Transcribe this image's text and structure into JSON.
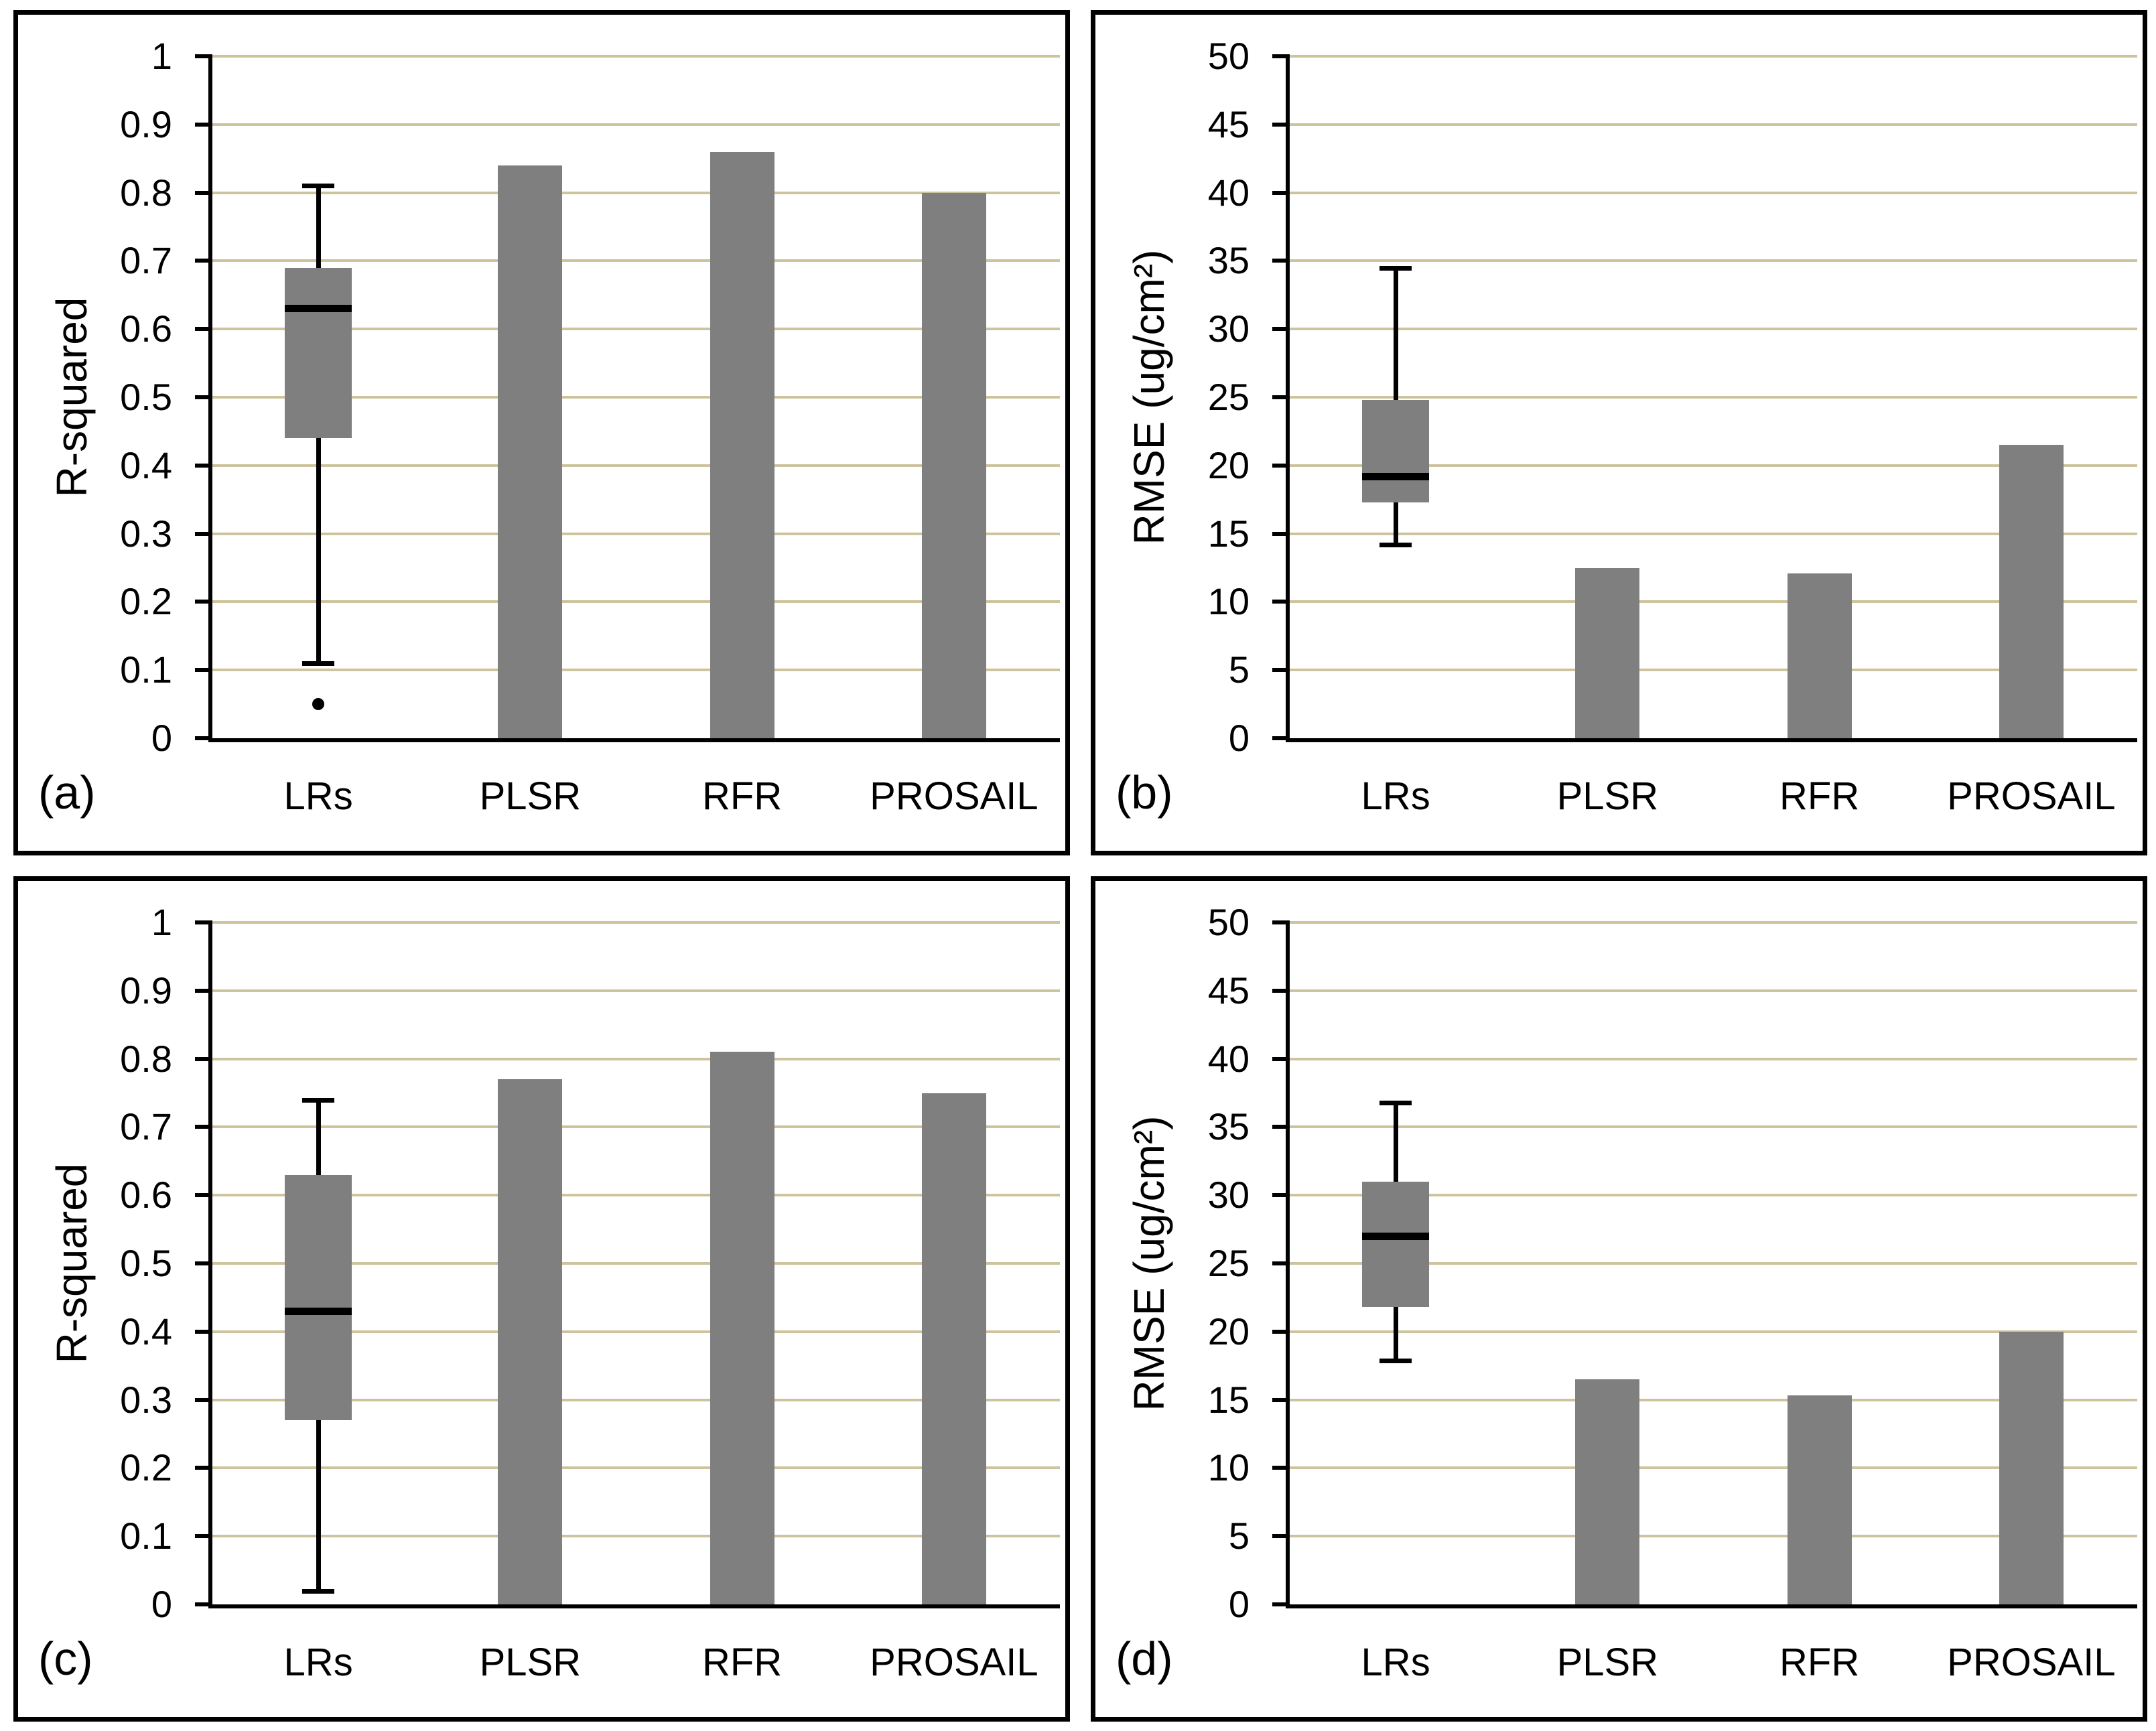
{
  "figure": {
    "background": "#ffffff",
    "panel_border_color": "#000000",
    "rows": 2,
    "cols": 2
  },
  "colors": {
    "bar": "#7f7f7f",
    "box_fill": "#7f7f7f",
    "median": "#000000",
    "whisker": "#000000",
    "outlier": "#000000",
    "gridline": "#cdc49e",
    "axis": "#000000",
    "text": "#000000"
  },
  "chart_data": [
    {
      "id": "a",
      "panel_label": "(a)",
      "type": "bar",
      "ylabel": "R-squared",
      "xlabel": "",
      "ylim": [
        0,
        1
      ],
      "grid": true,
      "legend_position": "none",
      "categories": [
        "LRs",
        "PLSR",
        "RFR",
        "PROSAIL"
      ],
      "yticks": [
        {
          "value": 1,
          "label": "1"
        },
        {
          "value": 0.9,
          "label": "0.9"
        },
        {
          "value": 0.8,
          "label": "0.8"
        },
        {
          "value": 0.7,
          "label": "0.7"
        },
        {
          "value": 0.6,
          "label": "0.6"
        },
        {
          "value": 0.5,
          "label": "0.5"
        },
        {
          "value": 0.4,
          "label": "0.4"
        },
        {
          "value": 0.3,
          "label": "0.3"
        },
        {
          "value": 0.2,
          "label": "0.2"
        },
        {
          "value": 0.1,
          "label": "0.1"
        },
        {
          "value": 0,
          "label": "0"
        }
      ],
      "series": [
        {
          "name": "LRs",
          "display": "boxplot",
          "whisker_low": 0.11,
          "q1": 0.44,
          "median": 0.63,
          "q3": 0.69,
          "whisker_high": 0.81,
          "outliers": [
            0.05
          ]
        },
        {
          "name": "PLSR",
          "display": "bar",
          "value": 0.84
        },
        {
          "name": "RFR",
          "display": "bar",
          "value": 0.86
        },
        {
          "name": "PROSAIL",
          "display": "bar",
          "value": 0.8
        }
      ]
    },
    {
      "id": "b",
      "panel_label": "(b)",
      "type": "bar",
      "ylabel": "RMSE (ug/cm²)",
      "xlabel": "",
      "ylim": [
        0,
        50
      ],
      "grid": true,
      "legend_position": "none",
      "categories": [
        "LRs",
        "PLSR",
        "RFR",
        "PROSAIL"
      ],
      "yticks": [
        {
          "value": 50,
          "label": "50"
        },
        {
          "value": 45,
          "label": "45"
        },
        {
          "value": 40,
          "label": "40"
        },
        {
          "value": 35,
          "label": "35"
        },
        {
          "value": 30,
          "label": "30"
        },
        {
          "value": 25,
          "label": "25"
        },
        {
          "value": 20,
          "label": "20"
        },
        {
          "value": 15,
          "label": "15"
        },
        {
          "value": 10,
          "label": "10"
        },
        {
          "value": 5,
          "label": "5"
        },
        {
          "value": 0,
          "label": "0"
        }
      ],
      "series": [
        {
          "name": "LRs",
          "display": "boxplot",
          "whisker_low": 14.2,
          "q1": 17.3,
          "median": 19.2,
          "q3": 24.8,
          "whisker_high": 34.5,
          "outliers": []
        },
        {
          "name": "PLSR",
          "display": "bar",
          "value": 12.5
        },
        {
          "name": "RFR",
          "display": "bar",
          "value": 12.1
        },
        {
          "name": "PROSAIL",
          "display": "bar",
          "value": 21.5
        }
      ]
    },
    {
      "id": "c",
      "panel_label": "(c)",
      "type": "bar",
      "ylabel": "R-squared",
      "xlabel": "",
      "ylim": [
        0,
        1
      ],
      "grid": true,
      "legend_position": "none",
      "categories": [
        "LRs",
        "PLSR",
        "RFR",
        "PROSAIL"
      ],
      "yticks": [
        {
          "value": 1,
          "label": "1"
        },
        {
          "value": 0.9,
          "label": "0.9"
        },
        {
          "value": 0.8,
          "label": "0.8"
        },
        {
          "value": 0.7,
          "label": "0.7"
        },
        {
          "value": 0.6,
          "label": "0.6"
        },
        {
          "value": 0.5,
          "label": "0.5"
        },
        {
          "value": 0.4,
          "label": "0.4"
        },
        {
          "value": 0.3,
          "label": "0.3"
        },
        {
          "value": 0.2,
          "label": "0.2"
        },
        {
          "value": 0.1,
          "label": "0.1"
        },
        {
          "value": 0,
          "label": "0"
        }
      ],
      "series": [
        {
          "name": "LRs",
          "display": "boxplot",
          "whisker_low": 0.02,
          "q1": 0.27,
          "median": 0.43,
          "q3": 0.63,
          "whisker_high": 0.74,
          "outliers": []
        },
        {
          "name": "PLSR",
          "display": "bar",
          "value": 0.77
        },
        {
          "name": "RFR",
          "display": "bar",
          "value": 0.81
        },
        {
          "name": "PROSAIL",
          "display": "bar",
          "value": 0.75
        }
      ]
    },
    {
      "id": "d",
      "panel_label": "(d)",
      "type": "bar",
      "ylabel": "RMSE (ug/cm²)",
      "xlabel": "",
      "ylim": [
        0,
        50
      ],
      "grid": true,
      "legend_position": "none",
      "categories": [
        "LRs",
        "PLSR",
        "RFR",
        "PROSAIL"
      ],
      "yticks": [
        {
          "value": 50,
          "label": "50"
        },
        {
          "value": 45,
          "label": "45"
        },
        {
          "value": 40,
          "label": "40"
        },
        {
          "value": 35,
          "label": "35"
        },
        {
          "value": 30,
          "label": "30"
        },
        {
          "value": 25,
          "label": "25"
        },
        {
          "value": 20,
          "label": "20"
        },
        {
          "value": 15,
          "label": "15"
        },
        {
          "value": 10,
          "label": "10"
        },
        {
          "value": 5,
          "label": "5"
        },
        {
          "value": 0,
          "label": "0"
        }
      ],
      "series": [
        {
          "name": "LRs",
          "display": "boxplot",
          "whisker_low": 17.9,
          "q1": 21.8,
          "median": 27.0,
          "q3": 31.0,
          "whisker_high": 36.8,
          "outliers": []
        },
        {
          "name": "PLSR",
          "display": "bar",
          "value": 16.5
        },
        {
          "name": "RFR",
          "display": "bar",
          "value": 15.3
        },
        {
          "name": "PROSAIL",
          "display": "bar",
          "value": 20.0
        }
      ]
    }
  ]
}
